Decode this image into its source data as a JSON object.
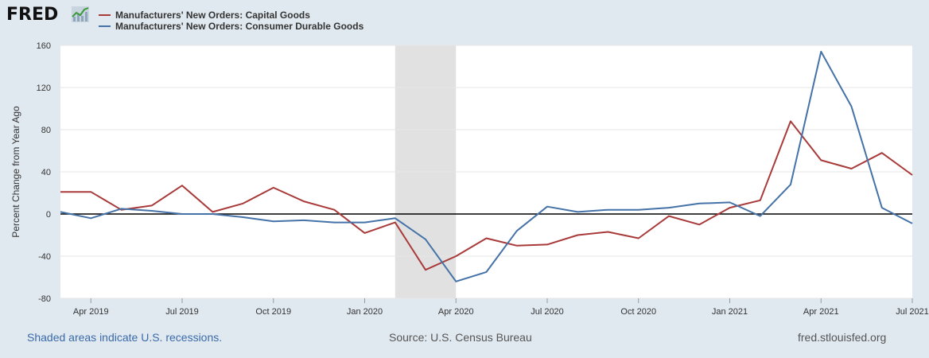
{
  "header": {
    "logo_text": "FRED",
    "logo_icon": "trend-line-icon"
  },
  "footer": {
    "recession_note": "Shaded areas indicate U.S. recessions.",
    "source": "Source: U.S. Census Bureau",
    "site": "fred.stlouisfed.org"
  },
  "colors": {
    "capital_goods": "#a93a3a",
    "consumer_durable": "#4572a7",
    "recession": "#e1e1e1",
    "background": "#e1e9f0"
  },
  "chart_data": {
    "type": "line",
    "title": "",
    "xlabel": "",
    "ylabel": "Percent Change from Year Ago",
    "ylim": [
      -80,
      160
    ],
    "yticks": [
      160,
      120,
      80,
      40,
      0,
      -40,
      -80
    ],
    "x": [
      "2019-03",
      "2019-04",
      "2019-05",
      "2019-06",
      "2019-07",
      "2019-08",
      "2019-09",
      "2019-10",
      "2019-11",
      "2019-12",
      "2020-01",
      "2020-02",
      "2020-03",
      "2020-04",
      "2020-05",
      "2020-06",
      "2020-07",
      "2020-08",
      "2020-09",
      "2020-10",
      "2020-11",
      "2020-12",
      "2021-01",
      "2021-02",
      "2021-03",
      "2021-04",
      "2021-05",
      "2021-06",
      "2021-07"
    ],
    "xtick_labels": [
      {
        "x": "2019-04",
        "label": "Apr 2019"
      },
      {
        "x": "2019-07",
        "label": "Jul 2019"
      },
      {
        "x": "2019-10",
        "label": "Oct 2019"
      },
      {
        "x": "2020-01",
        "label": "Jan 2020"
      },
      {
        "x": "2020-04",
        "label": "Apr 2020"
      },
      {
        "x": "2020-07",
        "label": "Jul 2020"
      },
      {
        "x": "2020-10",
        "label": "Oct 2020"
      },
      {
        "x": "2021-01",
        "label": "Jan 2021"
      },
      {
        "x": "2021-04",
        "label": "Apr 2021"
      },
      {
        "x": "2021-07",
        "label": "Jul 2021"
      }
    ],
    "recession": {
      "start": "2020-02",
      "end": "2020-04"
    },
    "zero_line": true,
    "grid": true,
    "legend_position": "top-left",
    "series": [
      {
        "name": "Manufacturers' New Orders: Capital Goods",
        "color": "#a93a3a",
        "values": [
          21,
          21,
          4,
          8,
          27,
          2,
          10,
          25,
          12,
          4,
          -18,
          -8,
          -53,
          -40,
          -23,
          -30,
          -29,
          -20,
          -17,
          -23,
          -2,
          -10,
          6,
          13,
          88,
          51,
          43,
          58,
          37
        ]
      },
      {
        "name": "Manufacturers' New Orders: Consumer Durable Goods",
        "color": "#4572a7",
        "values": [
          2,
          -4,
          5,
          3,
          0,
          0,
          -3,
          -7,
          -6,
          -8,
          -8,
          -4,
          -24,
          -64,
          -55,
          -16,
          7,
          2,
          4,
          4,
          6,
          10,
          11,
          -2,
          28,
          154,
          102,
          6,
          -9
        ]
      }
    ]
  }
}
